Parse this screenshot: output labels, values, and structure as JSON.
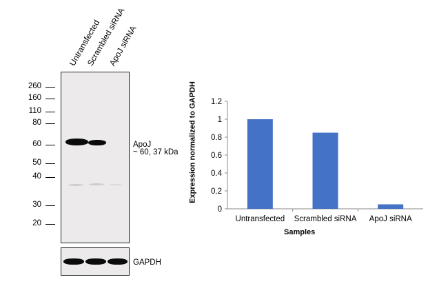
{
  "blot": {
    "lanes": [
      "Untransfected",
      "Scrambled siRNA",
      "ApoJ siRNA"
    ],
    "mw_markers": [
      "260",
      "160",
      "110",
      "80",
      "60",
      "50",
      "40",
      "30",
      "20"
    ],
    "target_label": "ApoJ",
    "target_size": "~ 60, 37 kDa",
    "loading_control_label": "GAPDH"
  },
  "chart_data": {
    "type": "bar",
    "categories": [
      "Untransfected",
      "Scrambled siRNA",
      "ApoJ siRNA"
    ],
    "values": [
      1.0,
      0.85,
      0.05
    ],
    "ylabel": "Expression  normalized to GAPDH",
    "xlabel": "Samples",
    "ylim": [
      0,
      1.2
    ],
    "yticks": [
      "0",
      "0.2",
      "0.4",
      "0.6",
      "0.8",
      "1",
      "1.2"
    ],
    "bar_color": "#4472c4",
    "grid": false
  }
}
